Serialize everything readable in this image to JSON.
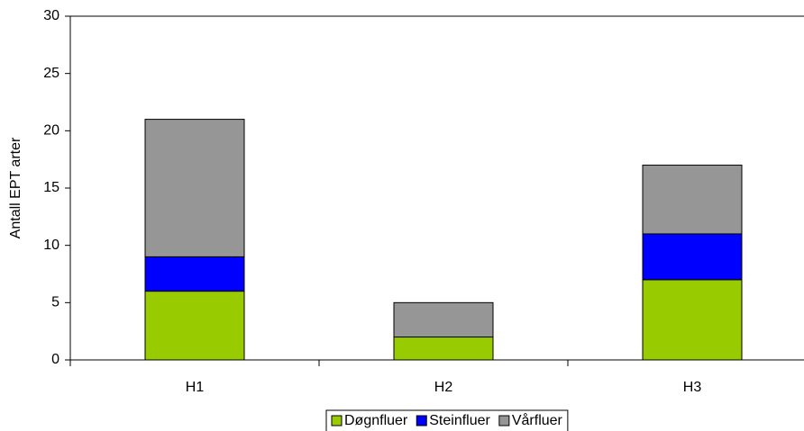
{
  "chart_data": {
    "type": "stacked_bar",
    "y_label": "Antall EPT arter",
    "categories": [
      "H1",
      "H2",
      "H3"
    ],
    "series": [
      {
        "name": "Døgnfluer",
        "color": "#99cc00",
        "values": [
          6,
          2,
          7
        ]
      },
      {
        "name": "Steinfluer",
        "color": "#0000ff",
        "values": [
          3,
          0,
          4
        ]
      },
      {
        "name": "Vårfluer",
        "color": "#969696",
        "values": [
          12,
          3,
          6
        ]
      }
    ],
    "ylim": [
      0,
      30
    ],
    "yticks": [
      0,
      5,
      10,
      15,
      20,
      25,
      30
    ]
  }
}
